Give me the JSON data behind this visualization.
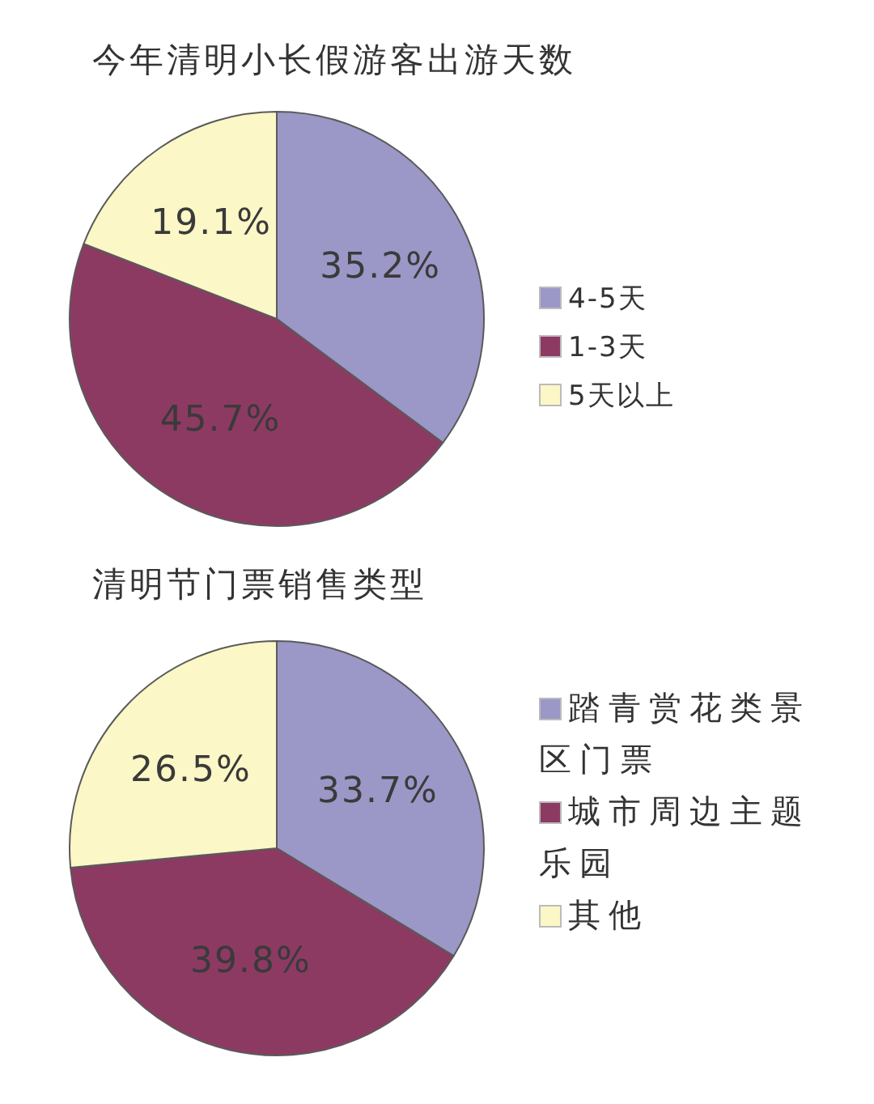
{
  "chart_data": [
    {
      "type": "pie",
      "title": "今年清明小长假游客出游天数",
      "categories": [
        "4-5天",
        "1-3天",
        "5天以上"
      ],
      "values": [
        35.2,
        45.7,
        19.1
      ],
      "colors": [
        "#9b97c7",
        "#8d3a63",
        "#fbf7c6"
      ],
      "value_labels": [
        "35.2%",
        "45.7%",
        "19.1%"
      ],
      "legend": "right"
    },
    {
      "type": "pie",
      "title": "清明节门票销售类型",
      "categories": [
        "踏青赏花类景区门票",
        "城市周边主题乐园",
        "其他"
      ],
      "values": [
        33.7,
        39.8,
        26.5
      ],
      "colors": [
        "#9b97c7",
        "#8d3a63",
        "#fbf7c6"
      ],
      "value_labels": [
        "33.7%",
        "39.8%",
        "26.5%"
      ],
      "legend": "right"
    }
  ]
}
